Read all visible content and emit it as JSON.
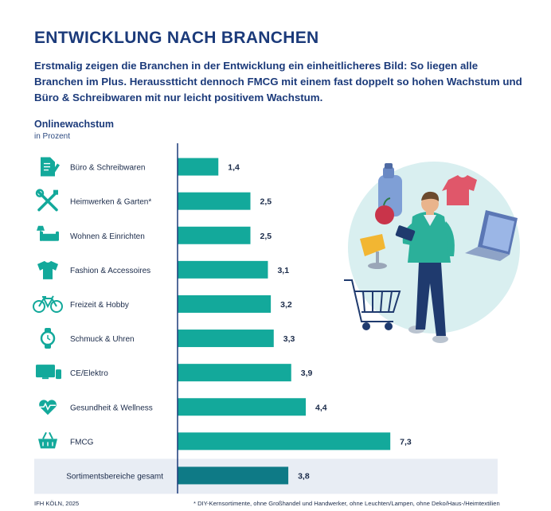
{
  "header": {
    "title": "ENTWICKLUNG NACH BRANCHEN",
    "subtitle": "Erstmalig zeigen die Branchen in der Entwicklung ein einheitlicheres Bild: So liegen alle Branchen im Plus. Herausstticht dennoch FMCG mit einem fast doppelt so hohen Wachstum und Büro & Schreibwaren mit nur leicht positivem Wachstum."
  },
  "chart_data": {
    "type": "bar",
    "orientation": "horizontal",
    "title": "Onlinewachstum",
    "unit_label": "in Prozent",
    "categories": [
      "Büro & Schreibwaren",
      "Heimwerken & Garten*",
      "Wohnen & Einrichten",
      "Fashion & Accessoires",
      "Freizeit & Hobby",
      "Schmuck & Uhren",
      "CE/Elektro",
      "Gesundheit & Wellness",
      "FMCG",
      "Sortimentsbereiche gesamt"
    ],
    "values": [
      1.4,
      2.5,
      2.5,
      3.1,
      3.2,
      3.3,
      3.9,
      4.4,
      7.3,
      3.8
    ],
    "value_labels": [
      "1,4",
      "2,5",
      "2,5",
      "3,1",
      "3,2",
      "3,3",
      "3,9",
      "4,4",
      "7,3",
      "3,8"
    ],
    "icons": [
      "document-pen-icon",
      "tools-icon",
      "sofa-lamp-icon",
      "shirt-icon",
      "bicycle-icon",
      "watch-icon",
      "tv-phone-icon",
      "heart-pulse-icon",
      "basket-icon",
      ""
    ],
    "highlight_index": 9,
    "xlim": [
      0,
      7.8
    ],
    "colors": {
      "bar": "#13a99b",
      "total_bar": "#0e7a86",
      "total_band": "#e8edf4",
      "icon": "#13a99b",
      "axis": "#1b3a7a"
    }
  },
  "footer": {
    "source": "IFH KÖLN, 2025",
    "note": "* DIY-Kernsortimente, ohne Großhandel und Handwerker, ohne Leuchten/Lampen, ohne Deko/Haus-/Heimtextilien"
  }
}
